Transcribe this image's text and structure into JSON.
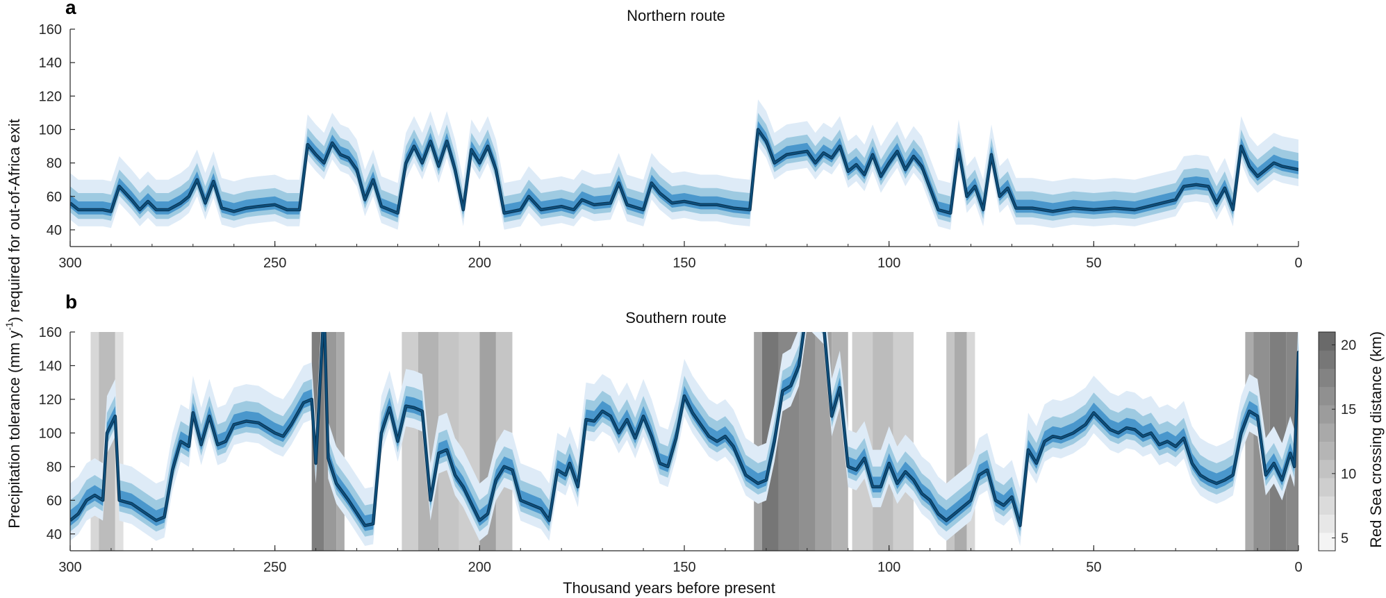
{
  "figure": {
    "ylabel": "Precipitation tolerance (mm y",
    "ylabel_sup": "-1",
    "ylabel_tail": ") required for out-of-Africa exit",
    "xlabel": "Thousand years before present"
  },
  "panel_a": {
    "letter": "a",
    "title": "Northern route"
  },
  "panel_b": {
    "letter": "b",
    "title": "Southern route"
  },
  "colorbar": {
    "label": "Red Sea crossing distance (km)",
    "ticks": [
      "5",
      "10",
      "15",
      "20"
    ],
    "tick_values": [
      5,
      10,
      15,
      20
    ],
    "range": [
      4,
      21
    ]
  },
  "colors": {
    "band_outer": "#deebf7",
    "band_mid": "#9ecae1",
    "band_inner": "#4a97cc",
    "median": "#0d4f7c",
    "median_halo": "#08304f"
  },
  "chart_data": [
    {
      "type": "area",
      "title": "Northern route",
      "xlabel": "",
      "ylabel": "Precipitation tolerance (mm y-1) required for out-of-Africa exit",
      "xlim": [
        300,
        0
      ],
      "ylim": [
        30,
        160
      ],
      "xticks": [
        300,
        250,
        200,
        150,
        100,
        50,
        0
      ],
      "yticks": [
        40,
        60,
        80,
        100,
        120,
        140,
        160
      ],
      "series_median": [
        [
          300,
          56
        ],
        [
          298,
          52
        ],
        [
          295,
          52
        ],
        [
          292,
          52
        ],
        [
          290,
          51
        ],
        [
          288,
          66
        ],
        [
          285,
          58
        ],
        [
          283,
          52
        ],
        [
          281,
          57
        ],
        [
          279,
          52
        ],
        [
          276,
          52
        ],
        [
          273,
          56
        ],
        [
          271,
          60
        ],
        [
          269,
          70
        ],
        [
          267,
          56
        ],
        [
          265,
          69
        ],
        [
          263,
          53
        ],
        [
          260,
          51
        ],
        [
          257,
          53
        ],
        [
          254,
          54
        ],
        [
          250,
          55
        ],
        [
          247,
          52
        ],
        [
          244,
          52
        ],
        [
          242,
          91
        ],
        [
          240,
          85
        ],
        [
          238,
          80
        ],
        [
          236,
          92
        ],
        [
          234,
          85
        ],
        [
          232,
          83
        ],
        [
          230,
          76
        ],
        [
          228,
          58
        ],
        [
          226,
          70
        ],
        [
          224,
          54
        ],
        [
          220,
          50
        ],
        [
          218,
          80
        ],
        [
          216,
          90
        ],
        [
          214,
          80
        ],
        [
          212,
          93
        ],
        [
          210,
          78
        ],
        [
          208,
          93
        ],
        [
          206,
          76
        ],
        [
          204,
          52
        ],
        [
          202,
          88
        ],
        [
          200,
          80
        ],
        [
          198,
          90
        ],
        [
          196,
          76
        ],
        [
          194,
          50
        ],
        [
          190,
          52
        ],
        [
          188,
          60
        ],
        [
          185,
          52
        ],
        [
          180,
          54
        ],
        [
          177,
          52
        ],
        [
          175,
          58
        ],
        [
          172,
          55
        ],
        [
          168,
          56
        ],
        [
          166,
          68
        ],
        [
          164,
          55
        ],
        [
          160,
          52
        ],
        [
          158,
          68
        ],
        [
          156,
          62
        ],
        [
          153,
          56
        ],
        [
          150,
          57
        ],
        [
          146,
          55
        ],
        [
          142,
          55
        ],
        [
          138,
          53
        ],
        [
          134,
          52
        ],
        [
          132,
          100
        ],
        [
          130,
          93
        ],
        [
          128,
          80
        ],
        [
          125,
          85
        ],
        [
          120,
          87
        ],
        [
          118,
          80
        ],
        [
          116,
          86
        ],
        [
          114,
          83
        ],
        [
          112,
          90
        ],
        [
          110,
          75
        ],
        [
          108,
          79
        ],
        [
          106,
          73
        ],
        [
          104,
          85
        ],
        [
          102,
          72
        ],
        [
          100,
          80
        ],
        [
          98,
          87
        ],
        [
          96,
          76
        ],
        [
          94,
          84
        ],
        [
          92,
          78
        ],
        [
          90,
          65
        ],
        [
          88,
          52
        ],
        [
          85,
          50
        ],
        [
          83,
          88
        ],
        [
          81,
          60
        ],
        [
          79,
          66
        ],
        [
          77,
          52
        ],
        [
          75,
          85
        ],
        [
          73,
          60
        ],
        [
          71,
          65
        ],
        [
          69,
          53
        ],
        [
          65,
          53
        ],
        [
          60,
          51
        ],
        [
          55,
          53
        ],
        [
          50,
          52
        ],
        [
          45,
          53
        ],
        [
          40,
          52
        ],
        [
          35,
          55
        ],
        [
          30,
          58
        ],
        [
          28,
          66
        ],
        [
          25,
          67
        ],
        [
          22,
          66
        ],
        [
          20,
          56
        ],
        [
          18,
          65
        ],
        [
          16,
          52
        ],
        [
          14,
          90
        ],
        [
          12,
          78
        ],
        [
          10,
          72
        ],
        [
          8,
          76
        ],
        [
          6,
          80
        ],
        [
          4,
          78
        ],
        [
          2,
          77
        ],
        [
          0,
          76
        ]
      ],
      "band_inner_halfwidth": 5,
      "band_mid_halfwidth": 10,
      "band_outer_halfwidth": 18
    },
    {
      "type": "area",
      "title": "Southern route",
      "xlabel": "Thousand years before present",
      "ylabel": "Precipitation tolerance (mm y-1) required for out-of-Africa exit",
      "xlim": [
        300,
        0
      ],
      "ylim": [
        30,
        160
      ],
      "xticks": [
        300,
        250,
        200,
        150,
        100,
        50,
        0
      ],
      "yticks": [
        40,
        60,
        80,
        100,
        120,
        140,
        160
      ],
      "series_median": [
        [
          300,
          48
        ],
        [
          298,
          52
        ],
        [
          296,
          60
        ],
        [
          294,
          63
        ],
        [
          292,
          60
        ],
        [
          291,
          100
        ],
        [
          289,
          110
        ],
        [
          288,
          60
        ],
        [
          285,
          58
        ],
        [
          282,
          53
        ],
        [
          279,
          48
        ],
        [
          277,
          50
        ],
        [
          275,
          78
        ],
        [
          273,
          95
        ],
        [
          271,
          92
        ],
        [
          270,
          112
        ],
        [
          268,
          93
        ],
        [
          266,
          110
        ],
        [
          264,
          93
        ],
        [
          262,
          95
        ],
        [
          260,
          105
        ],
        [
          257,
          107
        ],
        [
          254,
          106
        ],
        [
          250,
          100
        ],
        [
          248,
          98
        ],
        [
          246,
          105
        ],
        [
          243,
          118
        ],
        [
          241,
          120
        ],
        [
          240,
          82
        ],
        [
          238,
          175
        ],
        [
          237,
          85
        ],
        [
          235,
          70
        ],
        [
          232,
          60
        ],
        [
          228,
          45
        ],
        [
          226,
          46
        ],
        [
          224,
          100
        ],
        [
          222,
          115
        ],
        [
          220,
          95
        ],
        [
          218,
          116
        ],
        [
          216,
          115
        ],
        [
          214,
          113
        ],
        [
          212,
          60
        ],
        [
          210,
          88
        ],
        [
          208,
          90
        ],
        [
          206,
          75
        ],
        [
          204,
          68
        ],
        [
          202,
          58
        ],
        [
          200,
          48
        ],
        [
          198,
          52
        ],
        [
          196,
          72
        ],
        [
          194,
          80
        ],
        [
          192,
          78
        ],
        [
          190,
          60
        ],
        [
          188,
          58
        ],
        [
          185,
          55
        ],
        [
          183,
          48
        ],
        [
          181,
          78
        ],
        [
          179,
          75
        ],
        [
          178,
          82
        ],
        [
          176,
          68
        ],
        [
          174,
          108
        ],
        [
          172,
          107
        ],
        [
          170,
          113
        ],
        [
          168,
          110
        ],
        [
          166,
          100
        ],
        [
          164,
          108
        ],
        [
          162,
          97
        ],
        [
          160,
          110
        ],
        [
          158,
          98
        ],
        [
          156,
          82
        ],
        [
          154,
          80
        ],
        [
          152,
          97
        ],
        [
          150,
          122
        ],
        [
          148,
          112
        ],
        [
          146,
          105
        ],
        [
          144,
          98
        ],
        [
          142,
          95
        ],
        [
          140,
          98
        ],
        [
          138,
          92
        ],
        [
          135,
          75
        ],
        [
          132,
          70
        ],
        [
          130,
          72
        ],
        [
          128,
          95
        ],
        [
          126,
          125
        ],
        [
          124,
          128
        ],
        [
          122,
          140
        ],
        [
          120,
          175
        ],
        [
          118,
          170
        ],
        [
          116,
          165
        ],
        [
          114,
          110
        ],
        [
          112,
          127
        ],
        [
          110,
          80
        ],
        [
          108,
          78
        ],
        [
          106,
          85
        ],
        [
          104,
          68
        ],
        [
          102,
          68
        ],
        [
          100,
          82
        ],
        [
          98,
          70
        ],
        [
          96,
          77
        ],
        [
          94,
          72
        ],
        [
          92,
          64
        ],
        [
          90,
          60
        ],
        [
          88,
          52
        ],
        [
          86,
          48
        ],
        [
          84,
          52
        ],
        [
          80,
          60
        ],
        [
          78,
          75
        ],
        [
          76,
          78
        ],
        [
          74,
          60
        ],
        [
          72,
          57
        ],
        [
          70,
          62
        ],
        [
          68,
          45
        ],
        [
          66,
          90
        ],
        [
          64,
          82
        ],
        [
          62,
          95
        ],
        [
          60,
          98
        ],
        [
          58,
          97
        ],
        [
          55,
          100
        ],
        [
          52,
          105
        ],
        [
          50,
          112
        ],
        [
          48,
          107
        ],
        [
          46,
          102
        ],
        [
          44,
          100
        ],
        [
          42,
          103
        ],
        [
          40,
          102
        ],
        [
          38,
          98
        ],
        [
          36,
          100
        ],
        [
          34,
          93
        ],
        [
          32,
          95
        ],
        [
          30,
          92
        ],
        [
          28,
          97
        ],
        [
          26,
          82
        ],
        [
          24,
          75
        ],
        [
          22,
          72
        ],
        [
          20,
          70
        ],
        [
          18,
          72
        ],
        [
          16,
          75
        ],
        [
          14,
          100
        ],
        [
          12,
          113
        ],
        [
          10,
          110
        ],
        [
          8,
          75
        ],
        [
          6,
          82
        ],
        [
          4,
          72
        ],
        [
          2,
          88
        ],
        [
          1,
          80
        ],
        [
          0,
          148
        ],
        [
          -1,
          140
        ],
        [
          -2,
          118
        ]
      ],
      "band_inner_halfwidth": 6,
      "band_mid_halfwidth": 12,
      "band_outer_halfwidth": 22,
      "shaded_intervals_red_sea_km": [
        [
          295,
          293,
          8
        ],
        [
          293,
          289,
          11
        ],
        [
          289,
          287,
          7
        ],
        [
          241,
          238,
          18
        ],
        [
          238,
          235,
          15
        ],
        [
          235,
          233,
          13
        ],
        [
          219,
          215,
          9
        ],
        [
          215,
          210,
          12
        ],
        [
          210,
          205,
          10
        ],
        [
          205,
          200,
          9
        ],
        [
          200,
          196,
          14
        ],
        [
          196,
          192,
          10
        ],
        [
          133,
          131,
          14
        ],
        [
          131,
          127,
          19
        ],
        [
          127,
          122,
          17
        ],
        [
          122,
          118,
          16
        ],
        [
          118,
          114,
          14
        ],
        [
          114,
          110,
          12
        ],
        [
          109,
          104,
          9
        ],
        [
          104,
          99,
          11
        ],
        [
          99,
          94,
          9
        ],
        [
          86,
          84,
          10
        ],
        [
          84,
          81,
          13
        ],
        [
          81,
          79,
          8
        ],
        [
          13,
          11,
          13
        ],
        [
          11,
          7,
          16
        ],
        [
          7,
          3,
          18
        ],
        [
          3,
          0,
          17
        ]
      ]
    }
  ]
}
